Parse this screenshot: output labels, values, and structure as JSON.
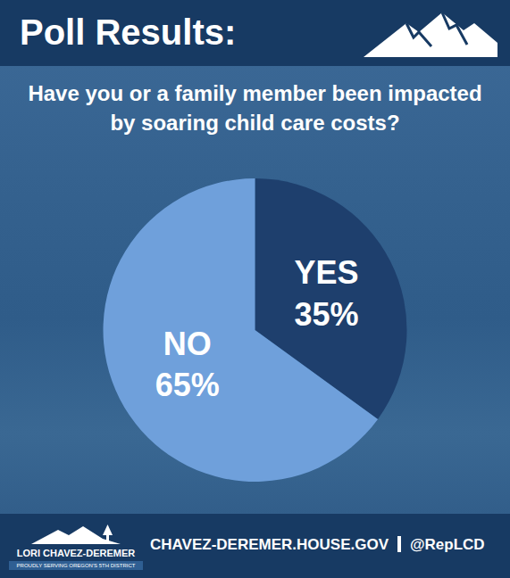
{
  "header": {
    "title": "Poll Results:"
  },
  "chart_data": {
    "type": "pie",
    "title": "Have you or a family member been impacted by soaring child care costs?",
    "categories": [
      "YES",
      "NO"
    ],
    "values": [
      35,
      65
    ],
    "value_labels": [
      "35%",
      "65%"
    ],
    "colors": [
      "#1e3f6d",
      "#6fa0db"
    ],
    "data_labels": true
  },
  "footer": {
    "logo_name": "LORI CHAVEZ-DEREMER",
    "logo_tagline": "PROUDLY SERVING OREGON'S 5TH DISTRICT",
    "website": "CHAVEZ-DEREMER.HOUSE.GOV",
    "handle": "@RepLCD"
  }
}
